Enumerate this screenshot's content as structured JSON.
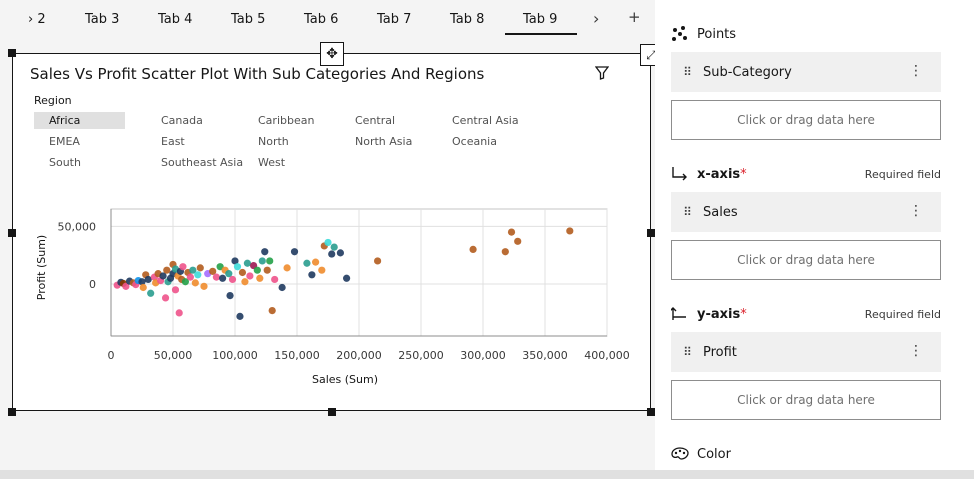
{
  "tabs": [
    {
      "label": "› 2",
      "left": 22
    },
    {
      "label": "Tab 3",
      "left": 85
    },
    {
      "label": "Tab 4",
      "left": 158
    },
    {
      "label": "Tab 5",
      "left": 231
    },
    {
      "label": "Tab 6",
      "left": 304
    },
    {
      "label": "Tab 7",
      "left": 377
    },
    {
      "label": "Tab 8",
      "left": 450
    },
    {
      "label": "Tab 9",
      "left": 523
    }
  ],
  "active_tab": "Tab 9",
  "tab_nav_icon": "chevron-right-icon",
  "add_tab_icon": "plus-icon",
  "viz": {
    "title": "Sales Vs Profit Scatter Plot With Sub Categories And Regions",
    "legend_title": "Region"
  },
  "legend": [
    {
      "label": "Africa"
    },
    {
      "label": "Canada"
    },
    {
      "label": "Caribbean"
    },
    {
      "label": "Central"
    },
    {
      "label": "Central Asia"
    },
    {
      "label": "EMEA"
    },
    {
      "label": "East"
    },
    {
      "label": "North"
    },
    {
      "label": "North Asia"
    },
    {
      "label": "Oceania"
    },
    {
      "label": "South"
    },
    {
      "label": "Southeast Asia"
    },
    {
      "label": "West"
    }
  ],
  "chart_data": {
    "type": "scatter",
    "title": "Sales Vs Profit Scatter Plot With Sub Categories And Regions",
    "xlabel": "Sales (Sum)",
    "ylabel": "Profit (Sum)",
    "xlim": [
      0,
      400000
    ],
    "x_ticks": [
      "0",
      "50,000",
      "100,000",
      "150,000",
      "200,000",
      "250,000",
      "300,000",
      "350,000",
      "400,000"
    ],
    "y_ticks": [
      "50,000",
      "0"
    ],
    "grid": true,
    "legend_title": "Region",
    "colors": [
      "#a56eff",
      "#1f3a5f",
      "#2a9d8f",
      "#b35c1e",
      "#ee538b",
      "#3ddbd9",
      "#f08c2e",
      "#8a3800",
      "#24a148",
      "#1192e8",
      "#6929c4",
      "#9f1853",
      "#005d5d"
    ],
    "points": [
      [
        5000,
        -1000,
        4
      ],
      [
        8000,
        1500,
        1
      ],
      [
        10000,
        500,
        7
      ],
      [
        12000,
        -2000,
        4
      ],
      [
        15000,
        2500,
        1
      ],
      [
        18000,
        1000,
        3
      ],
      [
        20000,
        -500,
        4
      ],
      [
        22000,
        3000,
        9
      ],
      [
        25000,
        2000,
        1
      ],
      [
        26000,
        -3000,
        6
      ],
      [
        28000,
        8000,
        3
      ],
      [
        30000,
        4000,
        1
      ],
      [
        32000,
        -8000,
        2
      ],
      [
        35000,
        6000,
        4
      ],
      [
        36000,
        1000,
        6
      ],
      [
        38000,
        9000,
        3
      ],
      [
        40000,
        3000,
        4
      ],
      [
        42000,
        7000,
        1
      ],
      [
        44000,
        -12000,
        4
      ],
      [
        45000,
        12000,
        3
      ],
      [
        46000,
        2000,
        2
      ],
      [
        48000,
        5000,
        1
      ],
      [
        50000,
        17000,
        3
      ],
      [
        50000,
        9000,
        1
      ],
      [
        52000,
        -5000,
        4
      ],
      [
        52000,
        13000,
        2
      ],
      [
        54000,
        7000,
        6
      ],
      [
        55000,
        -25000,
        4
      ],
      [
        56000,
        11000,
        1
      ],
      [
        57000,
        4000,
        3
      ],
      [
        58000,
        15000,
        4
      ],
      [
        60000,
        2000,
        8
      ],
      [
        62000,
        10000,
        3
      ],
      [
        64000,
        6000,
        4
      ],
      [
        66000,
        12000,
        2
      ],
      [
        68000,
        1000,
        6
      ],
      [
        70000,
        8000,
        5
      ],
      [
        72000,
        14000,
        3
      ],
      [
        75000,
        -2000,
        6
      ],
      [
        78000,
        9000,
        0
      ],
      [
        82000,
        11000,
        3
      ],
      [
        85000,
        6000,
        4
      ],
      [
        88000,
        15000,
        8
      ],
      [
        90000,
        5000,
        1
      ],
      [
        92000,
        12000,
        6
      ],
      [
        95000,
        9000,
        2
      ],
      [
        96000,
        -10000,
        1
      ],
      [
        98000,
        4000,
        4
      ],
      [
        100000,
        20000,
        1
      ],
      [
        102000,
        15000,
        5
      ],
      [
        104000,
        -28000,
        1
      ],
      [
        106000,
        10000,
        3
      ],
      [
        108000,
        2000,
        6
      ],
      [
        110000,
        18000,
        2
      ],
      [
        112000,
        7000,
        4
      ],
      [
        115000,
        16000,
        11
      ],
      [
        118000,
        12000,
        8
      ],
      [
        120000,
        5000,
        6
      ],
      [
        122000,
        20000,
        2
      ],
      [
        124000,
        28000,
        1
      ],
      [
        126000,
        12000,
        3
      ],
      [
        128000,
        20000,
        8
      ],
      [
        130000,
        -23000,
        3
      ],
      [
        132000,
        4000,
        4
      ],
      [
        138000,
        -3000,
        1
      ],
      [
        142000,
        14000,
        6
      ],
      [
        148000,
        28000,
        1
      ],
      [
        158000,
        18000,
        2
      ],
      [
        162000,
        8000,
        1
      ],
      [
        165000,
        19000,
        6
      ],
      [
        170000,
        12000,
        6
      ],
      [
        172000,
        33000,
        3
      ],
      [
        175000,
        36000,
        5
      ],
      [
        178000,
        26000,
        1
      ],
      [
        180000,
        32000,
        2
      ],
      [
        185000,
        27000,
        1
      ],
      [
        190000,
        5000,
        1
      ],
      [
        215000,
        20000,
        3
      ],
      [
        292000,
        30000,
        3
      ],
      [
        318000,
        28000,
        3
      ],
      [
        323000,
        45000,
        3
      ],
      [
        328000,
        37000,
        3
      ],
      [
        370000,
        46000,
        3
      ]
    ]
  },
  "panel": {
    "points_label": "Points",
    "points_icon": "points-icon",
    "subcategory_label": "Sub-Category",
    "drop_hint_1": "Click or drag data here",
    "xaxis_label": "x-axis",
    "xaxis_icon": "x-axis-icon",
    "required_text_1": "Required field",
    "sales_label": "Sales",
    "drop_hint_2": "Click or drag data here",
    "yaxis_label": "y-axis",
    "yaxis_icon": "y-axis-icon",
    "required_text_2": "Required field",
    "profit_label": "Profit",
    "drop_hint_3": "Click or drag data here",
    "color_label": "Color",
    "color_icon": "palette-icon",
    "required_star": "*"
  }
}
